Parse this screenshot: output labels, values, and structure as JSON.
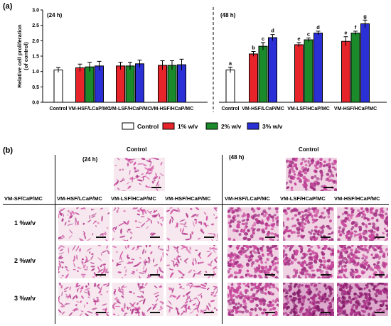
{
  "panel_a": {
    "letter": "(a)"
  },
  "panel_b": {
    "letter": "(b)",
    "control_label": "Control",
    "time_24": "(24 h)",
    "time_48": "(48 h)",
    "corner_label": "VM-SF/CaP/MC",
    "col_labels": [
      "VM-HSF/LCaP/MC",
      "VM-LSF/HCaP/MC",
      "VM-HSF/HCaP/MC"
    ],
    "row_labels": [
      "1 %w/v",
      "2 %w/v",
      "3 %w/v"
    ]
  },
  "chart_data": {
    "type": "bar",
    "ylabel": "Relative cell proliferation\n(of control)",
    "ylim": [
      0,
      3.0
    ],
    "yticks": [
      0.0,
      0.5,
      1.0,
      1.5,
      2.0,
      2.5,
      3.0
    ],
    "legend_placement": "bottom",
    "groups": [
      {
        "time": "(24 h)",
        "categories": [
          {
            "name": "Control",
            "bars": [
              {
                "series": "Control",
                "value": 1.05,
                "err": 0.08,
                "sig": ""
              }
            ]
          },
          {
            "name": "VM-HSF/LCaP/MC",
            "bars": [
              {
                "series": "1% w/v",
                "value": 1.12,
                "err": 0.12,
                "sig": ""
              },
              {
                "series": "2% w/v",
                "value": 1.15,
                "err": 0.15,
                "sig": ""
              },
              {
                "series": "3% w/v",
                "value": 1.18,
                "err": 0.15,
                "sig": ""
              }
            ]
          },
          {
            "name": "VM-LSF/HCaP/MC",
            "bars": [
              {
                "series": "1% w/v",
                "value": 1.18,
                "err": 0.12,
                "sig": ""
              },
              {
                "series": "2% w/v",
                "value": 1.18,
                "err": 0.12,
                "sig": ""
              },
              {
                "series": "3% w/v",
                "value": 1.25,
                "err": 0.12,
                "sig": ""
              }
            ]
          },
          {
            "name": "VM-HSF/HCaP/MC",
            "bars": [
              {
                "series": "1% w/v",
                "value": 1.2,
                "err": 0.15,
                "sig": ""
              },
              {
                "series": "2% w/v",
                "value": 1.2,
                "err": 0.15,
                "sig": ""
              },
              {
                "series": "3% w/v",
                "value": 1.22,
                "err": 0.18,
                "sig": ""
              }
            ]
          }
        ]
      },
      {
        "time": "(48 h)",
        "categories": [
          {
            "name": "Control",
            "bars": [
              {
                "series": "Control",
                "value": 1.05,
                "err": 0.09,
                "sig": "a"
              }
            ]
          },
          {
            "name": "VM-HSF/LCaP/MC",
            "bars": [
              {
                "series": "1% w/v",
                "value": 1.57,
                "err": 0.08,
                "sig": "b"
              },
              {
                "series": "2% w/v",
                "value": 1.82,
                "err": 0.12,
                "sig": "c"
              },
              {
                "series": "3% w/v",
                "value": 2.1,
                "err": 0.1,
                "sig": "d"
              }
            ]
          },
          {
            "name": "VM-LSF/HCaP/MC",
            "bars": [
              {
                "series": "1% w/v",
                "value": 1.87,
                "err": 0.07,
                "sig": "e"
              },
              {
                "series": "2% w/v",
                "value": 2.03,
                "err": 0.06,
                "sig": "c"
              },
              {
                "series": "3% w/v",
                "value": 2.25,
                "err": 0.06,
                "sig": "d"
              }
            ]
          },
          {
            "name": "VM-HSF/HCaP/MC",
            "bars": [
              {
                "series": "1% w/v",
                "value": 1.98,
                "err": 0.15,
                "sig": "e"
              },
              {
                "series": "2% w/v",
                "value": 2.25,
                "err": 0.06,
                "sig": "f"
              },
              {
                "series": "3% w/v",
                "value": 2.55,
                "err": 0.12,
                "sig": "g"
              }
            ]
          }
        ]
      }
    ],
    "legend": [
      {
        "name": "Control",
        "color": "#ffffff"
      },
      {
        "name": "1% w/v",
        "color": "#e8242b"
      },
      {
        "name": "2% w/v",
        "color": "#1a8a2a"
      },
      {
        "name": "3% w/v",
        "color": "#2b2fd6"
      }
    ]
  }
}
